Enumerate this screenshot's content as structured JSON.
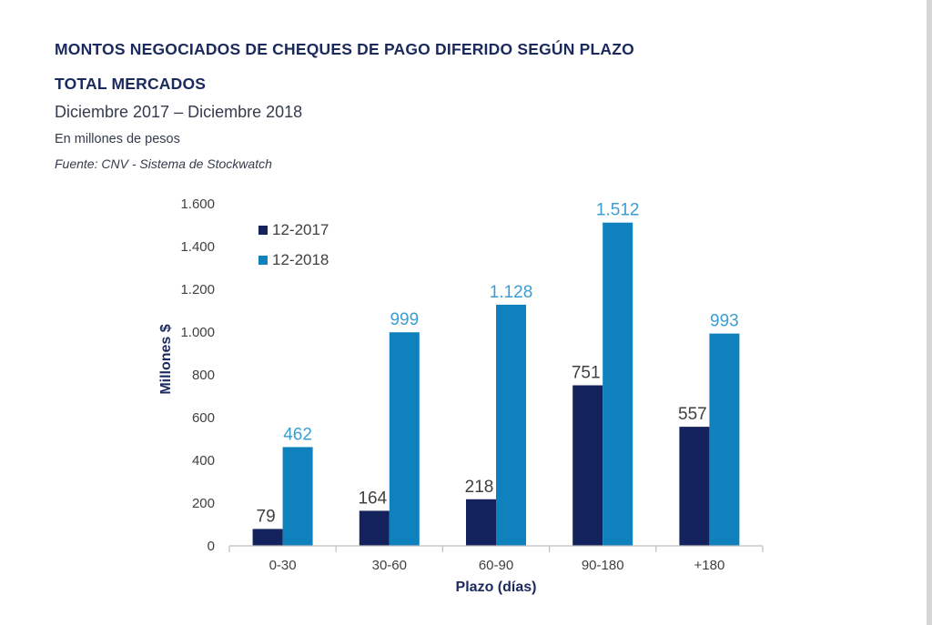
{
  "header": {
    "title_line1": "MONTOS NEGOCIADOS DE CHEQUES DE PAGO DIFERIDO SEGÚN PLAZO",
    "title_line2": "TOTAL MERCADOS",
    "period": "Diciembre 2017  – Diciembre 2018",
    "unit": "En millones de pesos",
    "source": "Fuente: CNV - Sistema de Stockwatch"
  },
  "chart_data": {
    "type": "bar",
    "categories": [
      "0-30",
      "30-60",
      "60-90",
      "90-180",
      "+180"
    ],
    "series": [
      {
        "name": "12-2017",
        "values": [
          79,
          164,
          218,
          751,
          557
        ],
        "labels": [
          "79",
          "164",
          "218",
          "751",
          "557"
        ],
        "color": "#14225e"
      },
      {
        "name": "12-2018",
        "values": [
          462,
          999,
          1128,
          1512,
          993
        ],
        "labels": [
          "462",
          "999",
          "1.128",
          "1.512",
          "993"
        ],
        "color": "#0f82bd"
      }
    ],
    "xlabel": "Plazo (días)",
    "ylabel": "Millones $",
    "ylim": [
      0,
      1600
    ],
    "yticks": [
      0,
      200,
      400,
      600,
      800,
      1000,
      1200,
      1400,
      1600
    ],
    "ytick_labels": [
      "0",
      "200",
      "400",
      "600",
      "800",
      "1.000",
      "1.200",
      "1.400",
      "1.600"
    ],
    "legend_position": "top-left",
    "grid": false
  }
}
